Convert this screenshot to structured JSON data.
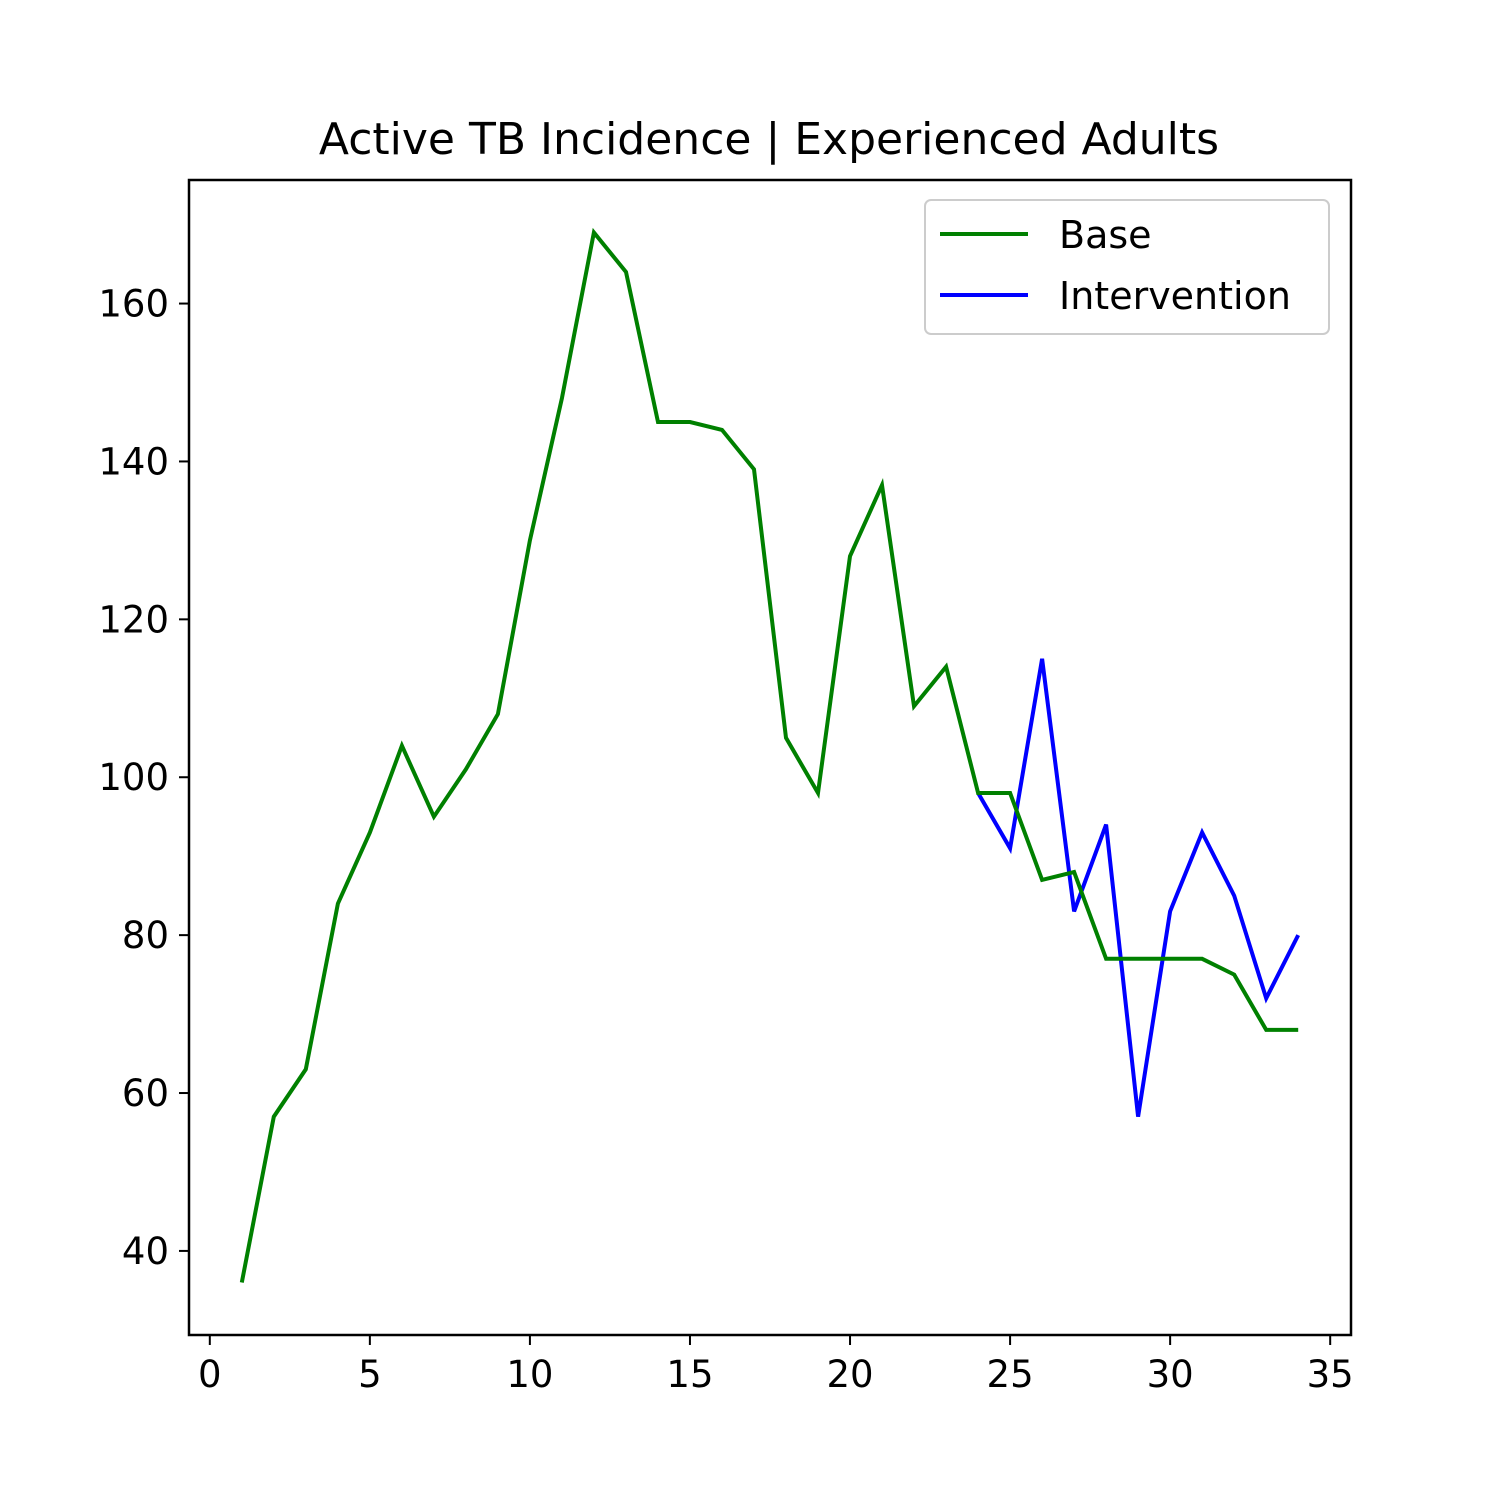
{
  "chart_data": {
    "type": "line",
    "title": "Active TB Incidence | Experienced Adults",
    "xlabel": "",
    "ylabel": "",
    "xlim": [
      -0.65,
      35.65
    ],
    "ylim": [
      29.35,
      175.65
    ],
    "xticks": [
      0,
      5,
      10,
      15,
      20,
      25,
      30,
      35
    ],
    "yticks": [
      40,
      60,
      80,
      100,
      120,
      140,
      160
    ],
    "grid": false,
    "legend_position": "top-right",
    "series": [
      {
        "name": "Intervention",
        "color": "#0000ff",
        "x": [
          24,
          25,
          26,
          27,
          28,
          29,
          30,
          31,
          32,
          33,
          34
        ],
        "y": [
          98,
          91,
          115,
          83,
          94,
          57,
          83,
          93,
          85,
          72,
          80
        ]
      },
      {
        "name": "Base",
        "color": "#008000",
        "x": [
          1,
          2,
          3,
          4,
          5,
          6,
          7,
          8,
          9,
          10,
          11,
          12,
          13,
          14,
          15,
          16,
          17,
          18,
          19,
          20,
          21,
          22,
          23,
          24,
          25,
          26,
          27,
          28,
          29,
          30,
          31,
          32,
          33,
          34
        ],
        "y": [
          36,
          57,
          63,
          84,
          93,
          104,
          95,
          101,
          108,
          130,
          148,
          169,
          164,
          145,
          145,
          144,
          139,
          105,
          98,
          128,
          137,
          109,
          114,
          98,
          98,
          87,
          88,
          77,
          77,
          77,
          77,
          75,
          68,
          68
        ]
      }
    ],
    "legend": [
      {
        "label": "Base",
        "color": "#008000"
      },
      {
        "label": "Intervention",
        "color": "#0000ff"
      }
    ]
  }
}
